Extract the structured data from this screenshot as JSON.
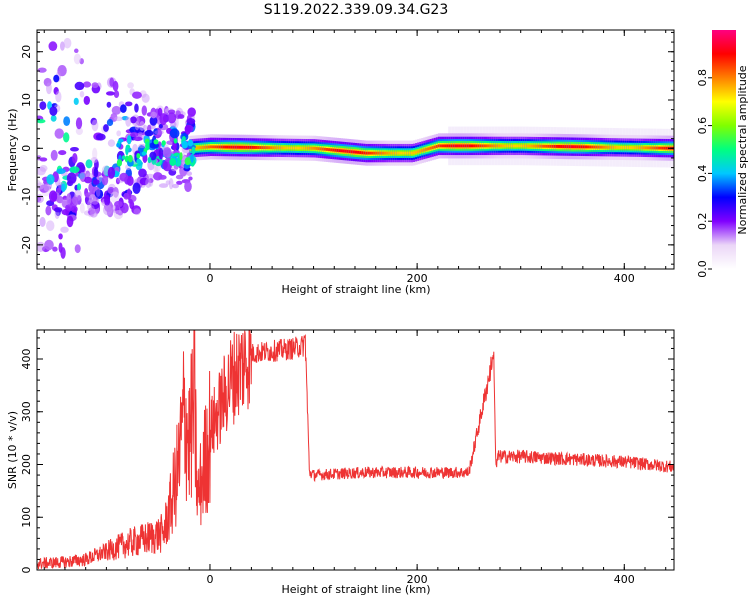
{
  "figure": {
    "title": "S119.2022.339.09.34.G23"
  },
  "chart_data": [
    {
      "type": "heatmap",
      "title": "S119.2022.339.09.34.G23",
      "xlabel": "Height of straight line (km)",
      "ylabel": "Frequency (Hz)",
      "xlim": [
        -167,
        448
      ],
      "ylim": [
        -25,
        24.5
      ],
      "xticks": [
        0,
        200,
        400
      ],
      "yticks": [
        -20,
        -10,
        0,
        10,
        20
      ],
      "colorbar": {
        "label": "Normalized spectral amplitude",
        "range": [
          0,
          1
        ],
        "ticks": [
          0.0,
          0.2,
          0.4,
          0.6,
          0.8
        ],
        "colormap": [
          "#ffffff",
          "#ebd6f7",
          "#8000ff",
          "#0000ff",
          "#00c8ff",
          "#00ff80",
          "#80ff00",
          "#ffff00",
          "#ff8000",
          "#ff0000",
          "#ff0080"
        ]
      },
      "ridge": {
        "description_points": [
          {
            "x": -20,
            "freq": 0.0
          },
          {
            "x": 0,
            "freq": 0.3
          },
          {
            "x": 100,
            "freq": 0.0
          },
          {
            "x": 150,
            "freq": -1.0
          },
          {
            "x": 195,
            "freq": -1.0
          },
          {
            "x": 220,
            "freq": 0.5
          },
          {
            "x": 300,
            "freq": 0.5
          },
          {
            "x": 448,
            "freq": 0.0
          }
        ]
      }
    },
    {
      "type": "line",
      "xlabel": "Height of straight line (km)",
      "ylabel": "SNR (10 * v/v)",
      "xlim": [
        -167,
        448
      ],
      "ylim": [
        0,
        455
      ],
      "xticks": [
        0,
        200,
        400
      ],
      "yticks": [
        0,
        100,
        200,
        300,
        400
      ],
      "color": "#ee3333",
      "series": [
        {
          "x": [
            -167,
            -140,
            -120,
            -100,
            -80,
            -60,
            -45,
            -38,
            -30,
            -25,
            -20,
            -15,
            -12,
            0,
            20,
            40,
            60,
            80,
            90,
            92,
            96,
            100,
            150,
            200,
            250,
            273,
            274,
            276,
            278,
            280,
            300,
            350,
            400,
            448
          ],
          "y": [
            12,
            15,
            20,
            35,
            50,
            60,
            70,
            120,
            200,
            300,
            240,
            320,
            130,
            260,
            360,
            410,
            415,
            420,
            425,
            440,
            185,
            180,
            185,
            185,
            185,
            400,
            410,
            190,
            215,
            215,
            215,
            210,
            205,
            195
          ]
        }
      ]
    }
  ]
}
